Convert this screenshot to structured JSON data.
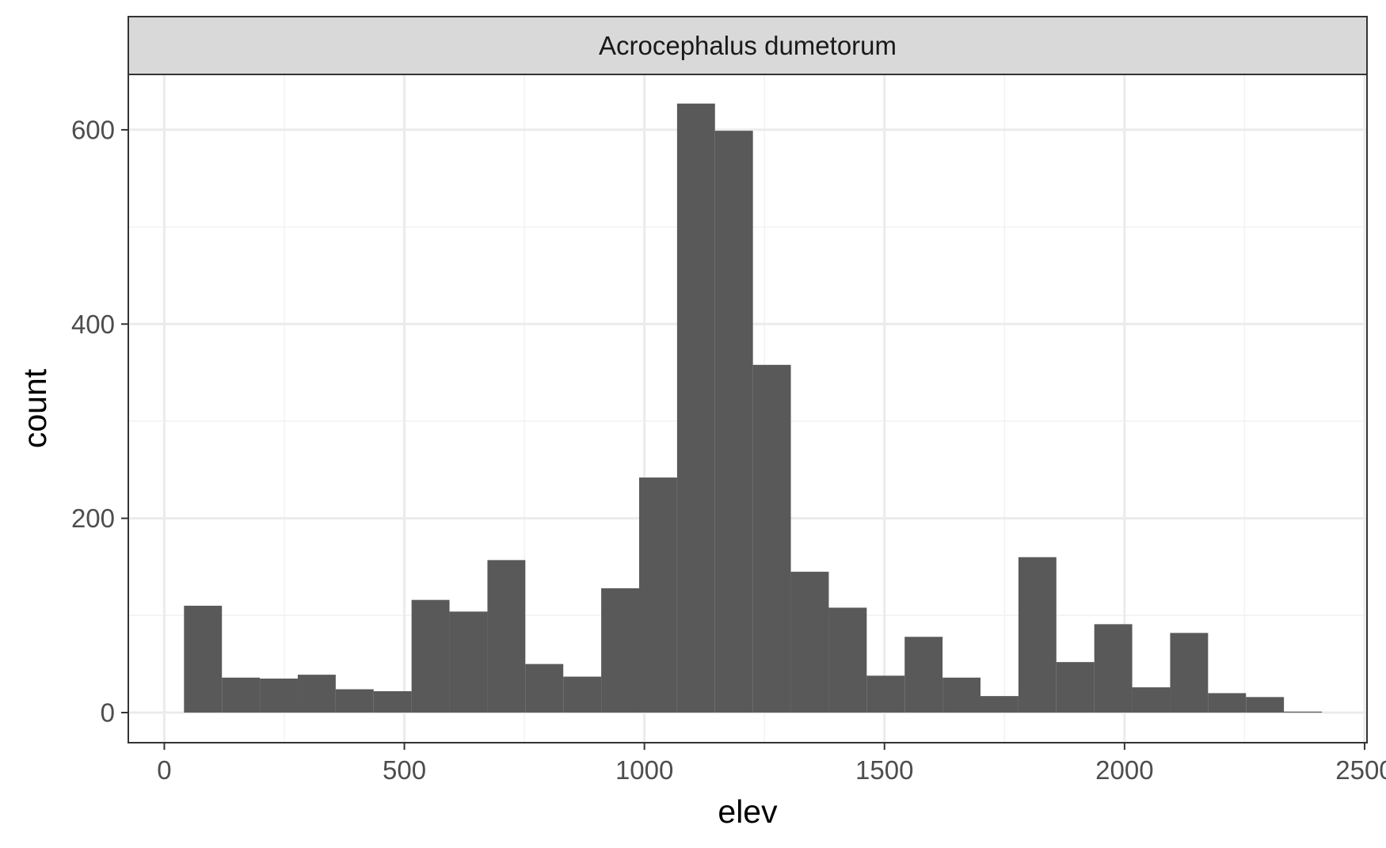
{
  "chart_data": {
    "type": "bar",
    "facet_label": "Acrocephalus dumetorum",
    "xlabel": "elev",
    "ylabel": "count",
    "xlim": [
      -75,
      2505
    ],
    "ylim": [
      -31,
      657
    ],
    "x_ticks": [
      0,
      500,
      1000,
      1500,
      2000,
      2500
    ],
    "x_tick_labels": [
      "0",
      "500",
      "1000",
      "1500",
      "2000",
      "2500"
    ],
    "y_ticks": [
      0,
      200,
      400,
      600
    ],
    "y_tick_labels": [
      "0",
      "200",
      "400",
      "600"
    ],
    "grid": true,
    "bin_width": 79,
    "bins": [
      {
        "x0": 41,
        "x1": 120,
        "count": 110
      },
      {
        "x0": 120,
        "x1": 199,
        "count": 36
      },
      {
        "x0": 199,
        "x1": 278,
        "count": 35
      },
      {
        "x0": 278,
        "x1": 357,
        "count": 39
      },
      {
        "x0": 357,
        "x1": 436,
        "count": 24
      },
      {
        "x0": 436,
        "x1": 515,
        "count": 22
      },
      {
        "x0": 515,
        "x1": 594,
        "count": 116
      },
      {
        "x0": 594,
        "x1": 673,
        "count": 104
      },
      {
        "x0": 673,
        "x1": 752,
        "count": 157
      },
      {
        "x0": 752,
        "x1": 831,
        "count": 50
      },
      {
        "x0": 831,
        "x1": 910,
        "count": 37
      },
      {
        "x0": 910,
        "x1": 989,
        "count": 128
      },
      {
        "x0": 989,
        "x1": 1068,
        "count": 242
      },
      {
        "x0": 1068,
        "x1": 1147,
        "count": 627
      },
      {
        "x0": 1147,
        "x1": 1226,
        "count": 599
      },
      {
        "x0": 1226,
        "x1": 1305,
        "count": 358
      },
      {
        "x0": 1305,
        "x1": 1384,
        "count": 145
      },
      {
        "x0": 1384,
        "x1": 1463,
        "count": 108
      },
      {
        "x0": 1463,
        "x1": 1542,
        "count": 38
      },
      {
        "x0": 1542,
        "x1": 1621,
        "count": 78
      },
      {
        "x0": 1621,
        "x1": 1700,
        "count": 36
      },
      {
        "x0": 1700,
        "x1": 1779,
        "count": 17
      },
      {
        "x0": 1779,
        "x1": 1858,
        "count": 160
      },
      {
        "x0": 1858,
        "x1": 1937,
        "count": 52
      },
      {
        "x0": 1937,
        "x1": 2016,
        "count": 91
      },
      {
        "x0": 2016,
        "x1": 2095,
        "count": 26
      },
      {
        "x0": 2095,
        "x1": 2174,
        "count": 82
      },
      {
        "x0": 2174,
        "x1": 2253,
        "count": 20
      },
      {
        "x0": 2253,
        "x1": 2332,
        "count": 16
      },
      {
        "x0": 2332,
        "x1": 2411,
        "count": 1
      }
    ],
    "colors": {
      "bar": "#595959",
      "panel_border": "#333333",
      "grid_major": "#ebebeb",
      "grid_minor": "#f2f2f2",
      "strip_fill": "#d9d9d9",
      "tick_label": "#4d4d4d"
    }
  }
}
